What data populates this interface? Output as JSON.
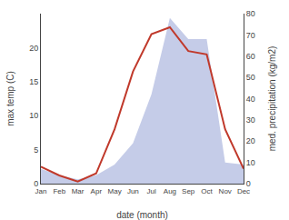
{
  "chart_data": {
    "type": "line",
    "xlabel": "date (month)",
    "ylabel": "max temp (C)",
    "y2label": "med. precipitation (kg/m2)",
    "categories": [
      "Jan",
      "Feb",
      "Mar",
      "Apr",
      "May",
      "Jun",
      "Jul",
      "Aug",
      "Sep",
      "Oct",
      "Nov",
      "Dec"
    ],
    "series": [
      {
        "type": "area",
        "axis": "y2",
        "color": "#c5cce8",
        "values": [
          7.0,
          4.0,
          2.0,
          4.0,
          9.0,
          19.0,
          42.0,
          78.0,
          68.0,
          68.0,
          10.0,
          9.0
        ]
      },
      {
        "type": "line",
        "color": "#c0392b",
        "values": [
          2.5,
          1.2,
          0.3,
          1.5,
          8.0,
          16.5,
          22.0,
          23.0,
          19.5,
          19.0,
          8.0,
          2.2
        ]
      }
    ],
    "ylim": [
      0,
      25
    ],
    "yticks": [
      0,
      5,
      10,
      15,
      20
    ],
    "y2lim": [
      0,
      80
    ],
    "y2ticks": [
      0,
      10,
      20,
      30,
      40,
      50,
      60,
      70,
      80
    ],
    "grid": false
  }
}
